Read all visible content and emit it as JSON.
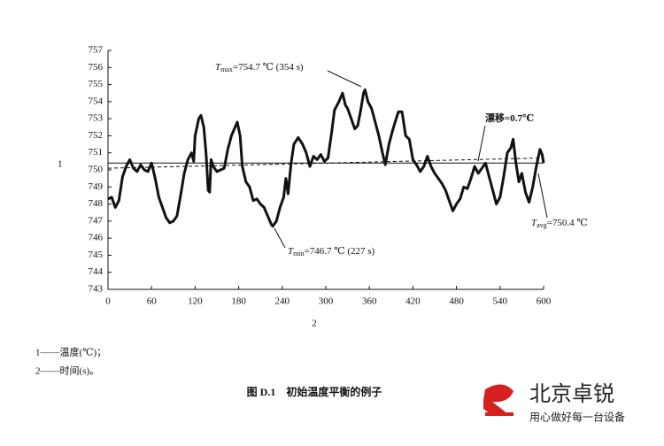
{
  "chart_data": {
    "type": "line",
    "ylabel": "1",
    "xlabel": "2",
    "xlim": [
      0,
      600
    ],
    "ylim": [
      743,
      757
    ],
    "xticks": [
      0,
      60,
      120,
      180,
      240,
      300,
      360,
      420,
      480,
      540,
      600
    ],
    "yticks": [
      743,
      744,
      745,
      746,
      747,
      748,
      749,
      750,
      751,
      752,
      753,
      754,
      755,
      756,
      757
    ],
    "series": [
      {
        "color": "#111111",
        "x": [
          0,
          5,
          10,
          15,
          20,
          25,
          30,
          35,
          40,
          45,
          50,
          55,
          60,
          65,
          70,
          75,
          80,
          85,
          90,
          95,
          100,
          105,
          110,
          115,
          118,
          120,
          125,
          128,
          132,
          135,
          138,
          140,
          142,
          145,
          150,
          155,
          160,
          165,
          170,
          175,
          178,
          182,
          185,
          190,
          195,
          200,
          205,
          210,
          215,
          220,
          225,
          227,
          232,
          237,
          242,
          245,
          248,
          252,
          256,
          262,
          268,
          273,
          278,
          283,
          288,
          293,
          298,
          303,
          308,
          312,
          318,
          323,
          327,
          330,
          335,
          340,
          344,
          348,
          352,
          354,
          358,
          363,
          368,
          373,
          378,
          382,
          387,
          392,
          397,
          400,
          405,
          410,
          415,
          420,
          425,
          430,
          435,
          440,
          445,
          450,
          455,
          460,
          465,
          470,
          475,
          480,
          485,
          490,
          495,
          500,
          505,
          510,
          515,
          520,
          525,
          530,
          535,
          540,
          545,
          550,
          555,
          558,
          562,
          566,
          570,
          575,
          580,
          585,
          590,
          595,
          598,
          600
        ],
        "values": [
          748.3,
          748.4,
          747.8,
          748.2,
          749.6,
          750.2,
          750.6,
          750.1,
          749.9,
          750.3,
          750.0,
          749.9,
          750.4,
          749.5,
          748.4,
          747.8,
          747.2,
          746.9,
          747.0,
          747.3,
          748.5,
          749.8,
          750.6,
          751.0,
          750.5,
          752.0,
          753.0,
          753.2,
          752.5,
          751.0,
          748.8,
          748.7,
          750.6,
          750.2,
          749.9,
          750.0,
          750.1,
          751.2,
          752.0,
          752.5,
          752.8,
          752.0,
          750.2,
          749.3,
          749.0,
          748.2,
          748.3,
          748.0,
          747.8,
          747.3,
          746.8,
          746.7,
          747.0,
          747.8,
          748.4,
          749.5,
          748.6,
          750.3,
          751.5,
          751.9,
          751.5,
          751.0,
          750.2,
          750.8,
          750.6,
          750.9,
          750.5,
          750.7,
          752.2,
          753.5,
          754.0,
          754.5,
          753.8,
          753.6,
          753.0,
          752.4,
          752.6,
          753.5,
          754.5,
          754.7,
          754.0,
          753.6,
          752.8,
          752.0,
          751.0,
          750.3,
          751.5,
          752.3,
          753.0,
          753.4,
          753.4,
          752.0,
          751.8,
          750.6,
          750.3,
          749.9,
          750.2,
          750.8,
          750.2,
          749.8,
          749.5,
          749.2,
          748.8,
          748.2,
          747.6,
          748.0,
          748.3,
          749.0,
          748.9,
          749.5,
          750.2,
          749.8,
          750.1,
          750.4,
          749.6,
          748.8,
          748.0,
          748.4,
          749.6,
          751.0,
          751.3,
          751.8,
          750.4,
          749.3,
          749.8,
          748.7,
          748.1,
          749.0,
          750.2,
          751.2,
          750.9,
          750.4
        ]
      }
    ],
    "avg_line": {
      "value": 750.4,
      "color": "#111111"
    },
    "drift_line": {
      "x": [
        0,
        600
      ],
      "values": [
        750.1,
        750.7
      ],
      "color": "#111111"
    },
    "annotations": [
      {
        "symbol": "T",
        "sub": "max",
        "text": "=754.7 ℃ (354 s)"
      },
      {
        "symbol": "T",
        "sub": "min",
        "text": "=746.7 ℃ (227 s)"
      },
      {
        "text": "漂移=0.7℃"
      },
      {
        "symbol": "T",
        "sub": "avg",
        "text": "=750.4 ℃"
      }
    ]
  },
  "notes": [
    "1——温度(℃)；",
    "2——时间(s)。"
  ],
  "caption": "图 D.1　初始温度平衡的例子",
  "watermark": {
    "name": "北京卓锐",
    "slogan": "用心做好每一台设备"
  }
}
